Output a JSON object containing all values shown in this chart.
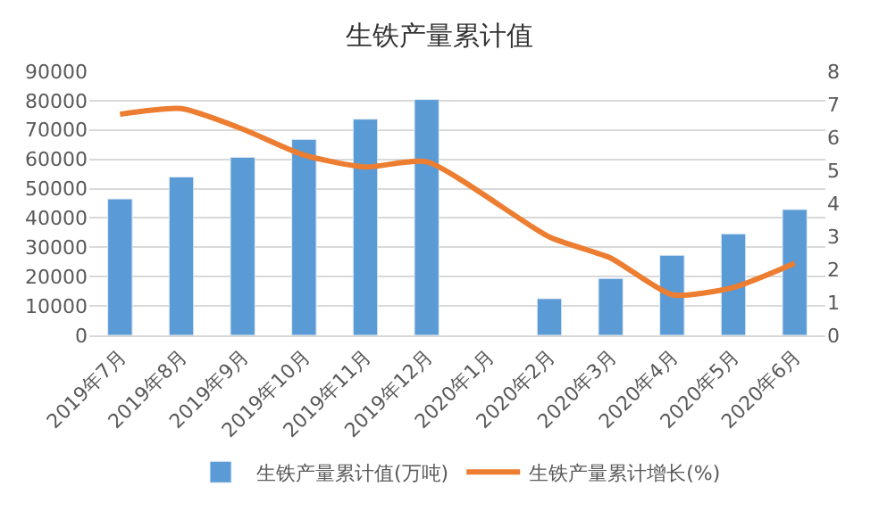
{
  "chart_data": {
    "type": "bar",
    "title": "生铁产量累计值",
    "categories": [
      "2019年7月",
      "2019年8月",
      "2019年9月",
      "2019年10月",
      "2019年11月",
      "2019年12月",
      "2020年1月",
      "2020年2月",
      "2020年3月",
      "2020年4月",
      "2020年5月",
      "2020年6月"
    ],
    "series": [
      {
        "name": "生铁产量累计值(万吨)",
        "color": "#5b9bd5",
        "values": [
          46500,
          54000,
          60700,
          66800,
          73700,
          80400,
          null,
          12500,
          19400,
          27300,
          34600,
          42900
        ]
      },
      {
        "name": "生铁产量累计增长(%)",
        "color": "#ed7d31",
        "type": "line",
        "axis": "y2",
        "values": [
          6.7,
          6.87,
          6.25,
          5.46,
          5.1,
          5.26,
          null,
          2.98,
          2.34,
          1.23,
          1.45,
          2.18
        ]
      }
    ],
    "ylim": [
      0,
      90000
    ],
    "yticks": [
      0,
      10000,
      20000,
      30000,
      40000,
      50000,
      60000,
      70000,
      80000,
      90000
    ],
    "y2lim": [
      0,
      8
    ],
    "y2ticks": [
      0,
      1,
      2,
      3,
      4,
      5,
      6,
      7,
      8
    ],
    "grid": "y",
    "legend": "bottom"
  }
}
